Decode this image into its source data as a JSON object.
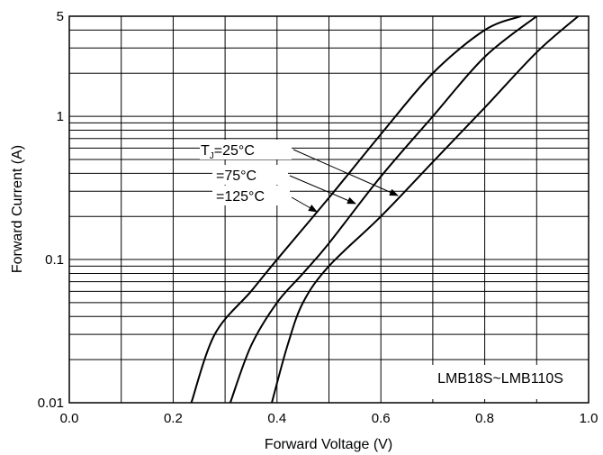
{
  "chart_data": {
    "type": "line",
    "title": "",
    "xlabel": "Forward Voltage (V)",
    "ylabel": "Forward Current (A)",
    "xlim": [
      0.0,
      1.0
    ],
    "ylim": [
      0.01,
      5
    ],
    "yscale": "log",
    "grid": true,
    "x_ticks": [
      0.0,
      0.2,
      0.4,
      0.6,
      0.8,
      1.0
    ],
    "x_tick_labels": [
      "0.0",
      "0.2",
      "0.4",
      "0.6",
      "0.8",
      "1.0"
    ],
    "y_ticks": [
      0.01,
      0.1,
      1,
      5
    ],
    "y_tick_labels": [
      "0.01",
      "0.1",
      "1",
      "5"
    ],
    "series": [
      {
        "name": "TJ=25°C",
        "x": [
          0.235,
          0.28,
          0.35,
          0.4,
          0.5,
          0.6,
          0.7,
          0.8,
          0.87
        ],
        "y": [
          0.01,
          0.03,
          0.06,
          0.1,
          0.27,
          0.75,
          2.0,
          4.0,
          5.0
        ]
      },
      {
        "name": "=75°C",
        "x": [
          0.31,
          0.35,
          0.4,
          0.45,
          0.5,
          0.6,
          0.7,
          0.8,
          0.9
        ],
        "y": [
          0.01,
          0.025,
          0.05,
          0.08,
          0.13,
          0.38,
          1.0,
          2.6,
          5.0
        ]
      },
      {
        "name": "=125°C",
        "x": [
          0.39,
          0.42,
          0.45,
          0.5,
          0.6,
          0.7,
          0.8,
          0.9,
          0.98
        ],
        "y": [
          0.01,
          0.025,
          0.05,
          0.09,
          0.2,
          0.48,
          1.15,
          2.8,
          5.0
        ]
      }
    ],
    "annotations": {
      "tj_prefix": "T",
      "tj_sub": "J",
      "label_25": "=25°C",
      "label_75": "=75°C",
      "label_125": "=125°C",
      "part_number": "LMB18S~LMB110S"
    }
  }
}
